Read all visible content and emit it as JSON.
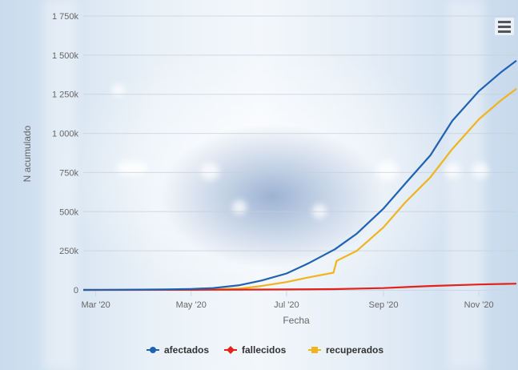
{
  "chart_data": {
    "type": "line",
    "xlabel": "Fecha",
    "ylabel": "N acumulado",
    "x_tick_labels": [
      "Mar '20",
      "May '20",
      "Jul '20",
      "Sep '20",
      "Nov '20"
    ],
    "x_tick_dates": [
      "2020-03-01",
      "2020-05-01",
      "2020-07-01",
      "2020-09-01",
      "2020-11-01"
    ],
    "x_range": [
      "2020-02-22",
      "2020-11-25"
    ],
    "y_tick_labels": [
      "0",
      "250k",
      "500k",
      "750k",
      "1 000k",
      "1 250k",
      "1 500k",
      "1 750k"
    ],
    "y_ticks": [
      0,
      250000,
      500000,
      750000,
      1000000,
      1250000,
      1500000,
      1750000
    ],
    "ylim": [
      0,
      1750000
    ],
    "grid": "horizontal",
    "legend_position": "bottom-center",
    "series": [
      {
        "name": "afectados",
        "color": "#1f62b3",
        "marker": "circle",
        "points": [
          [
            "2020-02-22",
            0
          ],
          [
            "2020-03-15",
            500
          ],
          [
            "2020-04-15",
            3000
          ],
          [
            "2020-05-01",
            6000
          ],
          [
            "2020-05-15",
            12000
          ],
          [
            "2020-06-01",
            30000
          ],
          [
            "2020-06-15",
            60000
          ],
          [
            "2020-07-01",
            105000
          ],
          [
            "2020-07-15",
            170000
          ],
          [
            "2020-08-01",
            260000
          ],
          [
            "2020-08-15",
            360000
          ],
          [
            "2020-09-01",
            520000
          ],
          [
            "2020-09-15",
            680000
          ],
          [
            "2020-10-01",
            860000
          ],
          [
            "2020-10-15",
            1080000
          ],
          [
            "2020-11-01",
            1270000
          ],
          [
            "2020-11-15",
            1390000
          ],
          [
            "2020-11-25",
            1465000
          ]
        ]
      },
      {
        "name": "fallecidos",
        "color": "#e2231a",
        "marker": "diamond",
        "points": [
          [
            "2020-02-22",
            0
          ],
          [
            "2020-05-01",
            500
          ],
          [
            "2020-07-01",
            3000
          ],
          [
            "2020-08-01",
            5000
          ],
          [
            "2020-09-01",
            12000
          ],
          [
            "2020-10-01",
            25000
          ],
          [
            "2020-11-01",
            35000
          ],
          [
            "2020-11-25",
            40000
          ]
        ]
      },
      {
        "name": "recuperados",
        "color": "#f0b41e",
        "marker": "square",
        "points": [
          [
            "2020-02-22",
            0
          ],
          [
            "2020-05-01",
            1000
          ],
          [
            "2020-06-01",
            8000
          ],
          [
            "2020-06-15",
            25000
          ],
          [
            "2020-07-01",
            50000
          ],
          [
            "2020-07-15",
            80000
          ],
          [
            "2020-07-31",
            110000
          ],
          [
            "2020-08-02",
            185000
          ],
          [
            "2020-08-15",
            250000
          ],
          [
            "2020-09-01",
            400000
          ],
          [
            "2020-09-15",
            560000
          ],
          [
            "2020-10-01",
            720000
          ],
          [
            "2020-10-15",
            900000
          ],
          [
            "2020-11-01",
            1090000
          ],
          [
            "2020-11-15",
            1210000
          ],
          [
            "2020-11-25",
            1285000
          ]
        ]
      }
    ]
  }
}
